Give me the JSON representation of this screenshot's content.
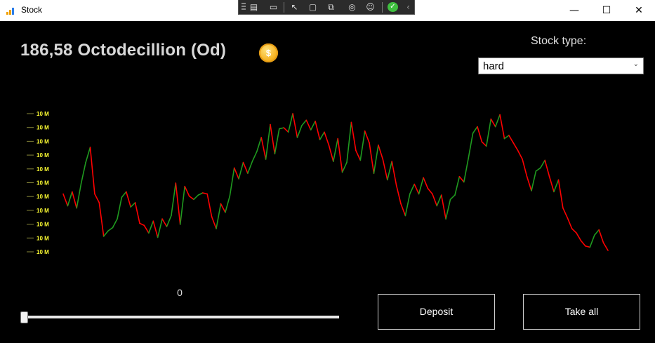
{
  "window": {
    "title": "Stock",
    "minimize": "—",
    "maximize": "☐",
    "close": "✕"
  },
  "devtools": {
    "icons": [
      "live-visual-tree-icon",
      "select-element-icon",
      "display-layout-adorners-icon",
      "track-focus-icon",
      "hot-reload-icon",
      "accessibility-icon",
      "binding-failures-check-icon",
      "collapse-chevron-icon"
    ],
    "chevron": "‹"
  },
  "balance": {
    "amount": "186,58 Octodecillion (Od)",
    "coin_symbol": "$"
  },
  "stock_type": {
    "label": "Stock type:",
    "selected": "hard"
  },
  "chart_data": {
    "type": "line",
    "title": "",
    "xlabel": "",
    "ylabel": "",
    "y_ticks": [
      "10 M",
      "10 M",
      "10 M",
      "10 M",
      "10 M",
      "10 M",
      "10 M",
      "10 M",
      "10 M",
      "10 M",
      "10 M"
    ],
    "colors": {
      "up": "#1f9a1f",
      "down": "#ff0000",
      "tick": "#ffff33"
    },
    "values": [
      10.3,
      9.2,
      10.5,
      9.0,
      11.3,
      13.2,
      14.6,
      10.3,
      9.5,
      6.4,
      6.9,
      7.2,
      8.0,
      10.0,
      10.5,
      9.1,
      9.5,
      7.6,
      7.4,
      6.7,
      7.8,
      6.3,
      8.0,
      7.3,
      8.3,
      11.3,
      7.5,
      11.0,
      10.1,
      9.8,
      10.2,
      10.4,
      10.3,
      8.2,
      7.1,
      9.4,
      8.6,
      10.1,
      12.7,
      11.7,
      13.2,
      12.2,
      13.3,
      14.2,
      15.5,
      13.5,
      16.7,
      14.0,
      16.3,
      16.4,
      16.0,
      17.7,
      15.5,
      16.6,
      17.1,
      16.2,
      17.0,
      15.3,
      16.0,
      14.8,
      13.3,
      15.4,
      12.3,
      13.2,
      16.9,
      14.3,
      13.4,
      16.1,
      15.0,
      12.2,
      14.8,
      13.5,
      11.6,
      13.3,
      11.1,
      9.4,
      8.3,
      10.3,
      11.2,
      10.3,
      11.8,
      10.8,
      10.3,
      9.2,
      10.2,
      8.0,
      9.8,
      10.2,
      11.9,
      11.4,
      13.6,
      15.9,
      16.5,
      15.1,
      14.7,
      17.2,
      16.5,
      17.6,
      15.4,
      15.7,
      15.0,
      14.3,
      13.5,
      11.9,
      10.6,
      12.4,
      12.7,
      13.4,
      11.9,
      10.5,
      11.6,
      9.0,
      8.1,
      7.1,
      6.7,
      6.0,
      5.5,
      5.4,
      6.5,
      7.0,
      5.8,
      5.1
    ]
  },
  "slider": {
    "value": "0",
    "fraction": 0
  },
  "buttons": {
    "deposit": "Deposit",
    "take_all": "Take all"
  }
}
